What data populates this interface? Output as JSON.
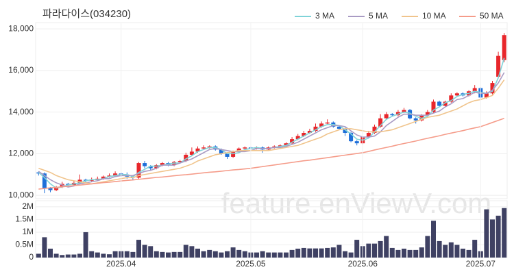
{
  "watermark": "feature.enViewV.com",
  "chart_data": [
    {
      "type": "candlestick",
      "title": "파라다이스(034230)",
      "open": [
        11100,
        11050,
        10350,
        10250,
        10400,
        10550,
        10500,
        10600,
        10750,
        10700,
        10750,
        10800,
        10900,
        10950,
        11050,
        11000,
        10900,
        10850,
        11550,
        11400,
        11300,
        11450,
        11550,
        11450,
        11600,
        11650,
        11950,
        12100,
        12250,
        12300,
        12350,
        12200,
        12000,
        11850,
        12100,
        12250,
        12300,
        12250,
        12300,
        12200,
        12300,
        12350,
        12400,
        12500,
        12700,
        12850,
        13000,
        13100,
        13300,
        13450,
        13500,
        13300,
        13200,
        13000,
        12600,
        12500,
        12800,
        13000,
        13300,
        13700,
        13900,
        13850,
        14000,
        14100,
        13700,
        13600,
        13850,
        14000,
        14500,
        14300,
        14500,
        14800,
        14900,
        14800,
        15000,
        15150,
        14700,
        14900,
        15700,
        16500
      ],
      "high": [
        11150,
        11100,
        10400,
        10450,
        10650,
        10600,
        10700,
        11000,
        10800,
        10850,
        10900,
        10950,
        11050,
        11150,
        11100,
        11100,
        10950,
        11600,
        11650,
        11450,
        11500,
        11600,
        11600,
        11650,
        11700,
        12050,
        12300,
        12350,
        12400,
        12400,
        12400,
        12250,
        12050,
        12150,
        12300,
        12350,
        12350,
        12350,
        12350,
        12350,
        12400,
        12450,
        12550,
        12800,
        12950,
        13100,
        13200,
        13450,
        13550,
        13650,
        13550,
        13350,
        13250,
        13050,
        12650,
        12850,
        13100,
        13400,
        13900,
        14000,
        13950,
        14100,
        14200,
        14150,
        13750,
        13900,
        14100,
        14600,
        14550,
        14550,
        14900,
        14950,
        14950,
        15050,
        15300,
        15200,
        15000,
        15500,
        16900,
        17800
      ],
      "low": [
        10950,
        10100,
        10150,
        10200,
        10350,
        10450,
        10450,
        10550,
        10600,
        10650,
        10700,
        10750,
        10850,
        10900,
        10900,
        10800,
        10750,
        10800,
        11300,
        11200,
        11250,
        11400,
        11400,
        11400,
        11550,
        11600,
        11900,
        12050,
        12200,
        12250,
        12150,
        11950,
        11750,
        11800,
        12050,
        12200,
        12200,
        12200,
        12050,
        12150,
        12250,
        12300,
        12350,
        12450,
        12650,
        12800,
        12950,
        13050,
        13250,
        13400,
        13250,
        13150,
        12850,
        12550,
        12400,
        12450,
        12750,
        12950,
        13250,
        13650,
        13800,
        13800,
        13950,
        13650,
        13450,
        13550,
        13800,
        13950,
        14250,
        14250,
        14450,
        14750,
        14750,
        14750,
        14900,
        14650,
        14650,
        14850,
        15650,
        16400
      ],
      "close": [
        11050,
        10350,
        10250,
        10400,
        10550,
        10500,
        10600,
        10750,
        10700,
        10750,
        10800,
        10900,
        10950,
        11050,
        11000,
        10900,
        10850,
        11550,
        11400,
        11300,
        11450,
        11550,
        11450,
        11600,
        11650,
        11950,
        12100,
        12250,
        12300,
        12350,
        12200,
        12000,
        11850,
        12100,
        12250,
        12300,
        12250,
        12300,
        12200,
        12300,
        12350,
        12400,
        12500,
        12700,
        12850,
        13000,
        13100,
        13300,
        13450,
        13500,
        13300,
        13200,
        13000,
        12600,
        12500,
        12800,
        13000,
        13300,
        13700,
        13900,
        13850,
        14000,
        14100,
        13700,
        13600,
        13850,
        14000,
        14500,
        14300,
        14500,
        14800,
        14900,
        14800,
        15000,
        15150,
        14700,
        14900,
        15400,
        16700,
        17700
      ],
      "up_color": "#e8262b",
      "down_color": "#1e6fd9",
      "series": [
        {
          "name": "3 MA",
          "color": "#7fd3d8",
          "values": [
            11100,
            10850,
            10550,
            10350,
            10400,
            10500,
            10550,
            10600,
            10700,
            10750,
            10750,
            10800,
            10900,
            10950,
            11000,
            11000,
            10900,
            11100,
            11250,
            11400,
            11400,
            11450,
            11500,
            11550,
            11550,
            11750,
            11900,
            12100,
            12200,
            12300,
            12300,
            12200,
            12000,
            12000,
            12050,
            12200,
            12250,
            12300,
            12250,
            12250,
            12300,
            12350,
            12400,
            12550,
            12700,
            12850,
            13000,
            13150,
            13300,
            13400,
            13400,
            13350,
            13150,
            12950,
            12700,
            12650,
            12750,
            13050,
            13350,
            13650,
            13800,
            13900,
            14000,
            13950,
            13800,
            13700,
            13800,
            14100,
            14250,
            14450,
            14550,
            14750,
            14850,
            14900,
            15000,
            14950,
            14900,
            15000,
            15650,
            16600
          ]
        },
        {
          "name": "5 MA",
          "color": "#a99bc4",
          "values": [
            11150,
            10950,
            10750,
            10600,
            10500,
            10400,
            10450,
            10550,
            10600,
            10650,
            10700,
            10800,
            10800,
            10900,
            10950,
            10950,
            10950,
            11050,
            11150,
            11200,
            11300,
            11450,
            11450,
            11450,
            11550,
            11650,
            11750,
            11900,
            12050,
            12200,
            12250,
            12200,
            12150,
            12100,
            12100,
            12100,
            12150,
            12250,
            12250,
            12250,
            12300,
            12300,
            12350,
            12450,
            12550,
            12700,
            12850,
            13000,
            13150,
            13250,
            13350,
            13350,
            13300,
            13100,
            12900,
            12800,
            12800,
            12850,
            13050,
            13350,
            13550,
            13750,
            13900,
            13900,
            13850,
            13850,
            13850,
            13950,
            14050,
            14250,
            14400,
            14600,
            14650,
            14800,
            14950,
            14900,
            14900,
            15050,
            15400,
            15900
          ]
        },
        {
          "name": "10 MA",
          "color": "#f0c48c",
          "values": [
            11300,
            11200,
            11100,
            10950,
            10850,
            10750,
            10700,
            10650,
            10600,
            10550,
            10600,
            10650,
            10700,
            10750,
            10800,
            10850,
            10850,
            10950,
            11000,
            11050,
            11100,
            11150,
            11200,
            11250,
            11300,
            11400,
            11500,
            11650,
            11750,
            11850,
            11950,
            12000,
            12050,
            12100,
            12150,
            12150,
            12150,
            12150,
            12150,
            12150,
            12200,
            12250,
            12300,
            12350,
            12400,
            12500,
            12600,
            12700,
            12800,
            12950,
            13050,
            13150,
            13200,
            13200,
            13150,
            13100,
            13050,
            13050,
            13050,
            13100,
            13150,
            13250,
            13350,
            13450,
            13550,
            13650,
            13750,
            13800,
            13850,
            13950,
            14050,
            14150,
            14300,
            14450,
            14550,
            14600,
            14700,
            14800,
            15150,
            15550
          ]
        },
        {
          "name": "50 MA",
          "color": "#f59c8a",
          "values": [
            10300,
            10330,
            10360,
            10380,
            10410,
            10440,
            10470,
            10490,
            10520,
            10550,
            10580,
            10610,
            10630,
            10660,
            10690,
            10720,
            10740,
            10770,
            10800,
            10830,
            10860,
            10880,
            10910,
            10940,
            10970,
            10990,
            11020,
            11050,
            11080,
            11110,
            11130,
            11160,
            11190,
            11220,
            11240,
            11270,
            11300,
            11340,
            11380,
            11420,
            11460,
            11500,
            11540,
            11580,
            11620,
            11660,
            11690,
            11730,
            11770,
            11810,
            11850,
            11890,
            11930,
            11970,
            12010,
            12050,
            12110,
            12180,
            12240,
            12300,
            12360,
            12430,
            12490,
            12550,
            12610,
            12680,
            12740,
            12800,
            12860,
            12930,
            12990,
            13050,
            13110,
            13180,
            13240,
            13300,
            13400,
            13500,
            13600,
            13700
          ]
        }
      ],
      "ylim": [
        9840,
        18300
      ],
      "yticks": [
        {
          "value": 10000,
          "label": "10,000"
        },
        {
          "value": 12000,
          "label": "12,000"
        },
        {
          "value": 14000,
          "label": "14,000"
        },
        {
          "value": 16000,
          "label": "16,000"
        },
        {
          "value": 18000,
          "label": "18,000"
        }
      ],
      "grid": true,
      "legend": "top-right"
    },
    {
      "type": "bar",
      "color": "#3f4163",
      "categories": [
        null,
        null,
        null,
        null,
        null,
        null,
        null,
        null,
        null,
        null,
        null,
        null,
        null,
        null,
        "2025.04",
        null,
        null,
        null,
        null,
        null,
        null,
        null,
        null,
        null,
        null,
        null,
        null,
        null,
        null,
        null,
        null,
        null,
        null,
        null,
        null,
        null,
        "2025.05",
        null,
        null,
        null,
        null,
        null,
        null,
        null,
        null,
        null,
        null,
        null,
        null,
        null,
        null,
        null,
        null,
        null,
        null,
        "2025.06",
        null,
        null,
        null,
        null,
        null,
        null,
        null,
        null,
        null,
        null,
        null,
        null,
        null,
        null,
        null,
        null,
        null,
        null,
        null,
        "2025.07",
        null,
        null,
        null,
        null
      ],
      "values": [
        150000,
        800000,
        350000,
        150000,
        100000,
        120000,
        120000,
        150000,
        1000000,
        250000,
        200000,
        150000,
        130000,
        250000,
        250000,
        250000,
        220000,
        700000,
        500000,
        450000,
        250000,
        220000,
        200000,
        220000,
        220000,
        500000,
        450000,
        350000,
        250000,
        300000,
        250000,
        200000,
        250000,
        400000,
        300000,
        250000,
        200000,
        200000,
        250000,
        200000,
        200000,
        200000,
        200000,
        300000,
        350000,
        380000,
        360000,
        360000,
        360000,
        380000,
        400000,
        500000,
        250000,
        200000,
        700000,
        450000,
        550000,
        550000,
        650000,
        850000,
        380000,
        300000,
        350000,
        300000,
        300000,
        400000,
        850000,
        1450000,
        650000,
        500000,
        600000,
        500000,
        350000,
        300000,
        700000,
        250000,
        1900000,
        1500000,
        1650000,
        1950000
      ],
      "ylim": [
        0,
        2240000
      ],
      "yticks": [
        0,
        {
          "value": 500000,
          "label": "0.5M"
        },
        {
          "value": 1000000,
          "label": "1M"
        },
        {
          "value": 1500000,
          "label": "1.5M"
        },
        {
          "value": 2000000,
          "label": "2M"
        }
      ],
      "grid": true
    }
  ]
}
